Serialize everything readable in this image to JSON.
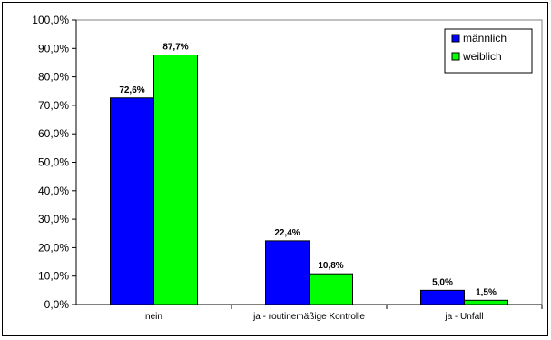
{
  "chart_data": {
    "type": "bar",
    "categories": [
      "nein",
      "ja - routinemäßige Kontrolle",
      "ja - Unfall"
    ],
    "series": [
      {
        "name": "männlich",
        "values": [
          72.6,
          22.4,
          5.0
        ],
        "labels": [
          "72,6%",
          "22,4%",
          "5,0%"
        ],
        "color": "#0000ff"
      },
      {
        "name": "weiblich",
        "values": [
          87.7,
          10.8,
          1.5
        ],
        "labels": [
          "87,7%",
          "10,8%",
          "1,5%"
        ],
        "color": "#00ff00"
      }
    ],
    "ylim": [
      0,
      100
    ],
    "yticks": [
      0,
      10,
      20,
      30,
      40,
      50,
      60,
      70,
      80,
      90,
      100
    ],
    "ytick_labels": [
      "0,0%",
      "10,0%",
      "20,0%",
      "30,0%",
      "40,0%",
      "50,0%",
      "60,0%",
      "70,0%",
      "80,0%",
      "90,0%",
      "100,0%"
    ],
    "grid": false,
    "legend_position": "top-right",
    "title": "",
    "xlabel": "",
    "ylabel": ""
  }
}
